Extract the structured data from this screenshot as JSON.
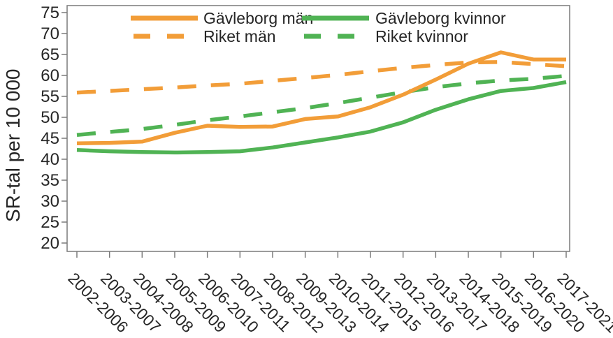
{
  "chart_data": {
    "type": "line",
    "title": "",
    "xlabel": "",
    "ylabel": "SR-tal per 10 000",
    "ylim": [
      20,
      75
    ],
    "yticks": [
      20,
      25,
      30,
      35,
      40,
      45,
      50,
      55,
      60,
      65,
      70,
      75
    ],
    "grid": false,
    "legend_position": "top-inside",
    "categories": [
      "2002-2006",
      "2003-2007",
      "2004-2008",
      "2005-2009",
      "2006-2010",
      "2007-2011",
      "2008-2012",
      "2009-2013",
      "2010-2014",
      "2011-2015",
      "2012-2016",
      "2013-2017",
      "2014-2018",
      "2015-2019",
      "2016-2020",
      "2017-2021"
    ],
    "series": [
      {
        "name": "Gävleborg män",
        "color": "#F29D38",
        "style": "solid",
        "values": [
          43.8,
          43.9,
          44.2,
          46.3,
          48.0,
          47.7,
          47.8,
          49.6,
          50.2,
          52.4,
          55.4,
          59.0,
          62.8,
          65.5,
          63.8,
          63.8
        ]
      },
      {
        "name": "Riket män",
        "color": "#F29D38",
        "style": "dashed",
        "values": [
          55.9,
          56.3,
          56.7,
          57.1,
          57.6,
          58.0,
          58.7,
          59.4,
          60.1,
          61.0,
          61.8,
          62.5,
          63.1,
          63.2,
          62.7,
          62.2
        ]
      },
      {
        "name": "Gävleborg kvinnor",
        "color": "#50B354",
        "style": "solid",
        "values": [
          42.2,
          41.9,
          41.7,
          41.6,
          41.7,
          41.9,
          42.8,
          44.0,
          45.2,
          46.6,
          48.8,
          51.8,
          54.3,
          56.3,
          57.0,
          58.4
        ]
      },
      {
        "name": "Riket kvinnor",
        "color": "#50B354",
        "style": "dashed",
        "values": [
          45.8,
          46.5,
          47.2,
          48.2,
          49.3,
          50.2,
          51.2,
          52.2,
          53.4,
          54.7,
          56.0,
          57.2,
          58.1,
          58.8,
          59.2,
          59.9
        ]
      }
    ]
  }
}
